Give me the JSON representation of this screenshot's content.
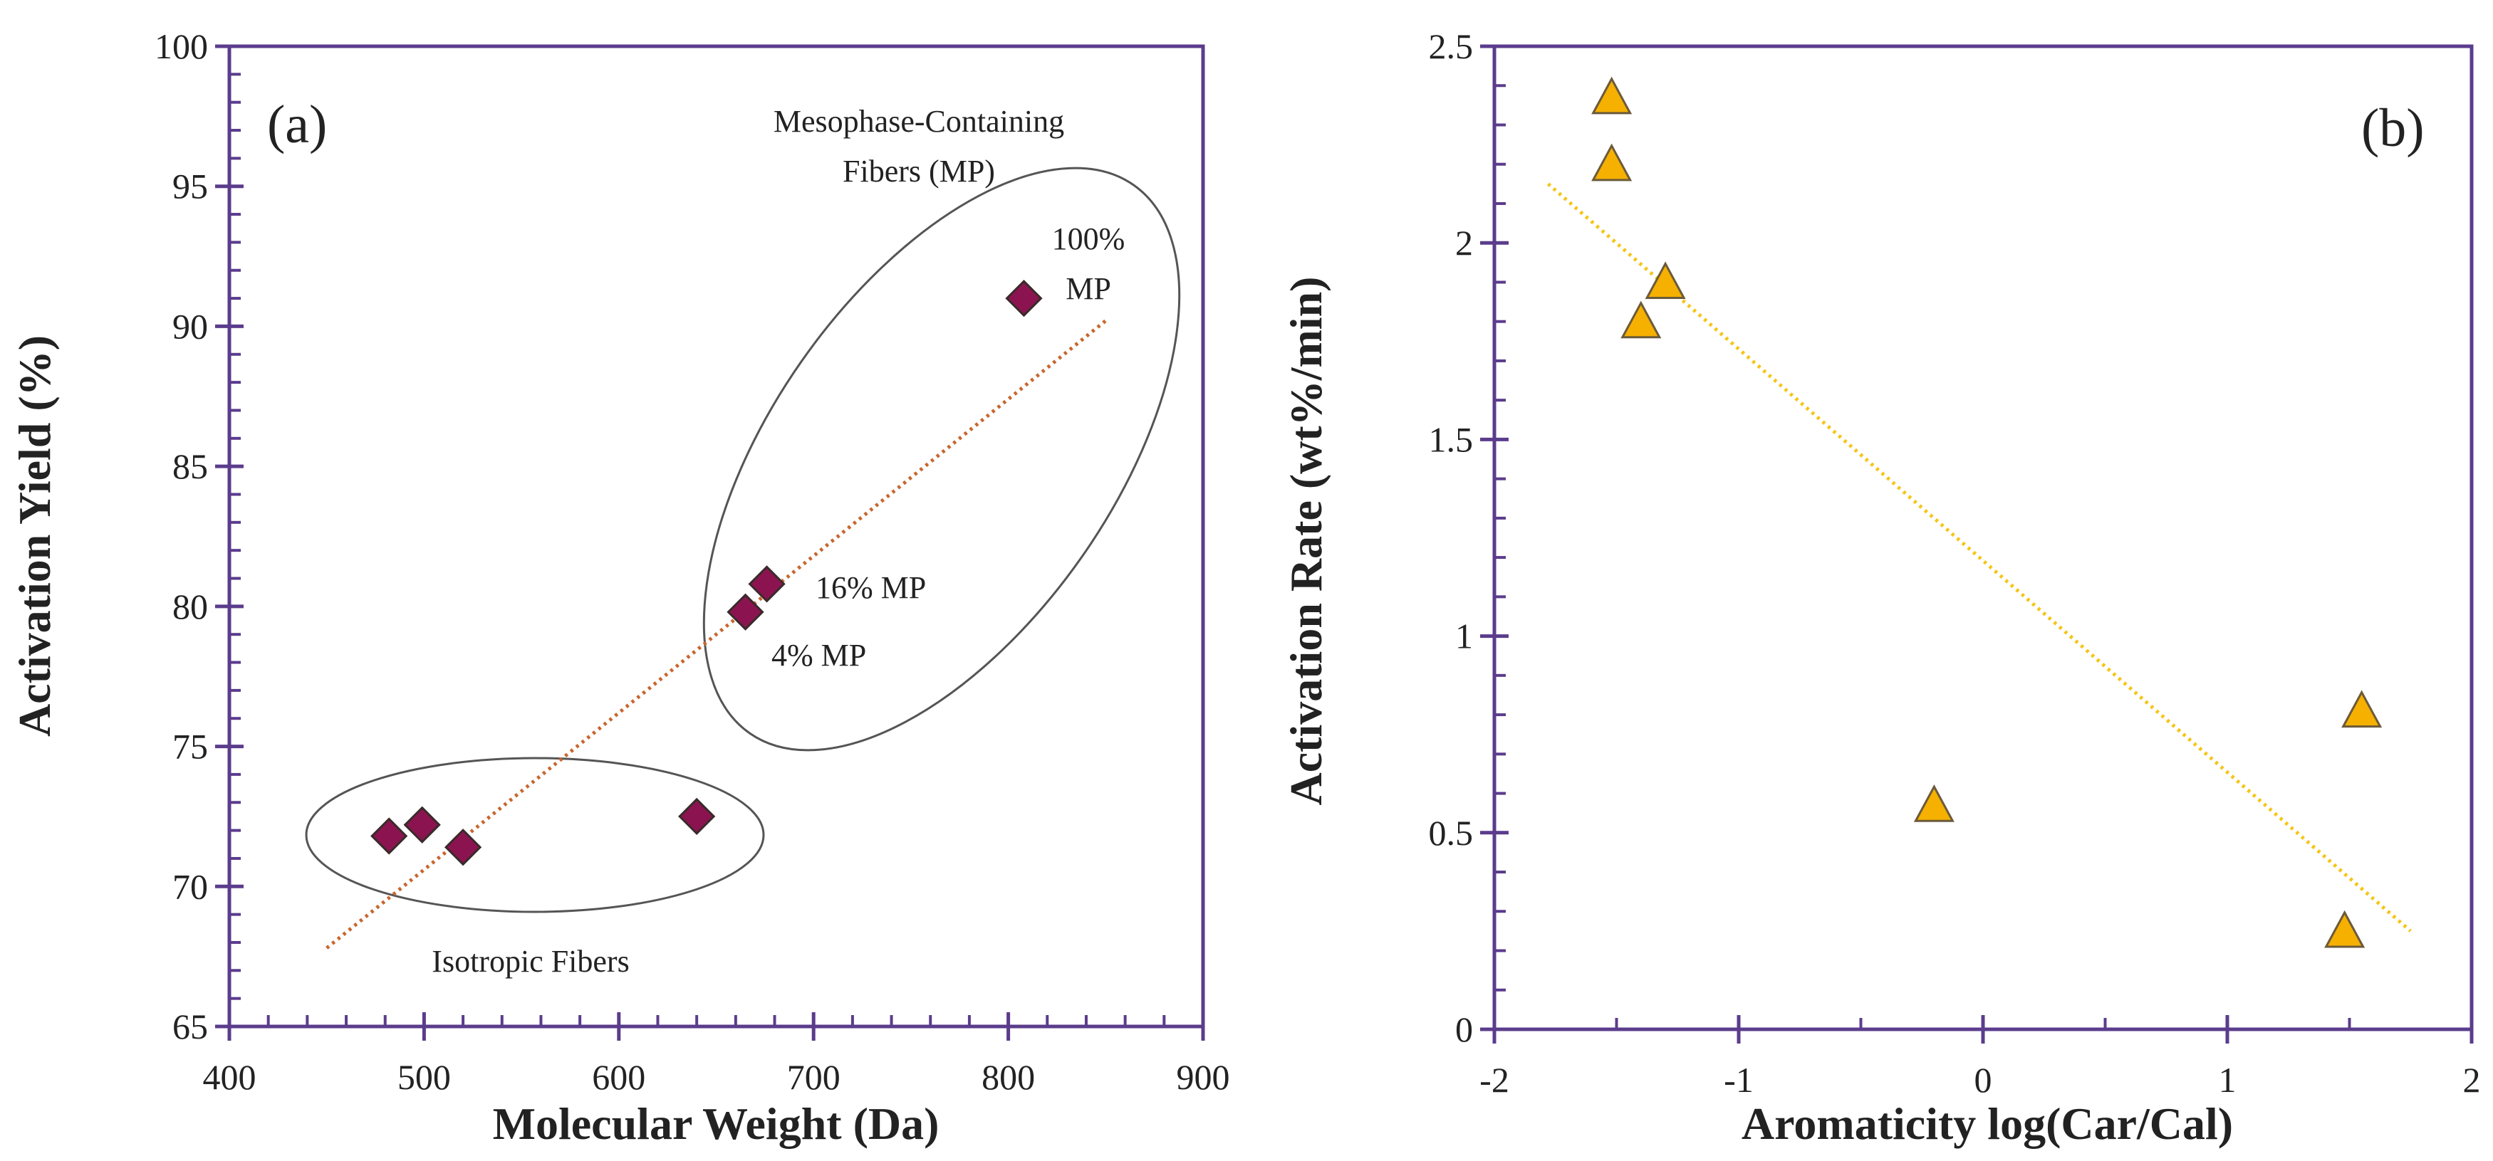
{
  "chart_data": [
    {
      "type": "scatter",
      "panel_label": "(a)",
      "xlabel": "Molecular Weight (Da)",
      "ylabel": "Activation Yield (%)",
      "xlim": [
        400,
        900
      ],
      "ylim": [
        65,
        100
      ],
      "xticks": [
        400,
        500,
        600,
        700,
        800,
        900
      ],
      "yticks": [
        65,
        70,
        75,
        80,
        85,
        90,
        95,
        100
      ],
      "x_minor_step": 20,
      "y_minor_step": 1,
      "grid": false,
      "marker": "diamond",
      "marker_color": "#8B1450",
      "trend_color": "#C8662E",
      "axis_color": "#5B3C8C",
      "series": [
        {
          "name": "Fibers",
          "x": [
            482,
            499,
            520,
            640,
            665,
            676,
            808
          ],
          "y": [
            71.8,
            72.2,
            71.4,
            72.5,
            79.8,
            80.8,
            91.0
          ]
        }
      ],
      "trendline": {
        "x": [
          450,
          850
        ],
        "y": [
          67.8,
          90.2
        ]
      },
      "annotations": {
        "mesophase_title_1": "Mesophase-Containing",
        "mesophase_title_2": "Fibers (MP)",
        "mp100_1": "100%",
        "mp100_2": "MP",
        "mp16": "16% MP",
        "mp4": "4% MP",
        "isotropic": "Isotropic Fibers"
      }
    },
    {
      "type": "scatter",
      "panel_label": "(b)",
      "xlabel": "Aromaticity log(Car/Cal)",
      "ylabel": "Activation Rate (wt%/min)",
      "xlim": [
        -2,
        2
      ],
      "ylim": [
        0,
        2.5
      ],
      "xticks": [
        -2,
        -1,
        0,
        1,
        2
      ],
      "yticks": [
        0,
        0.5,
        1,
        1.5,
        2,
        2.5
      ],
      "x_minor_step": 0.5,
      "y_minor_step": 0.1,
      "grid": false,
      "marker": "triangle",
      "marker_color": "#F5B000",
      "trend_color": "#F5C518",
      "axis_color": "#5B3C8C",
      "series": [
        {
          "name": "Fibers",
          "x": [
            -1.52,
            -1.52,
            -1.3,
            -1.4,
            -0.2,
            1.48,
            1.55
          ],
          "y": [
            2.37,
            2.2,
            1.9,
            1.8,
            0.57,
            0.25,
            0.81
          ]
        }
      ],
      "trendline": {
        "x": [
          -1.78,
          1.75
        ],
        "y": [
          2.15,
          0.25
        ]
      }
    }
  ]
}
